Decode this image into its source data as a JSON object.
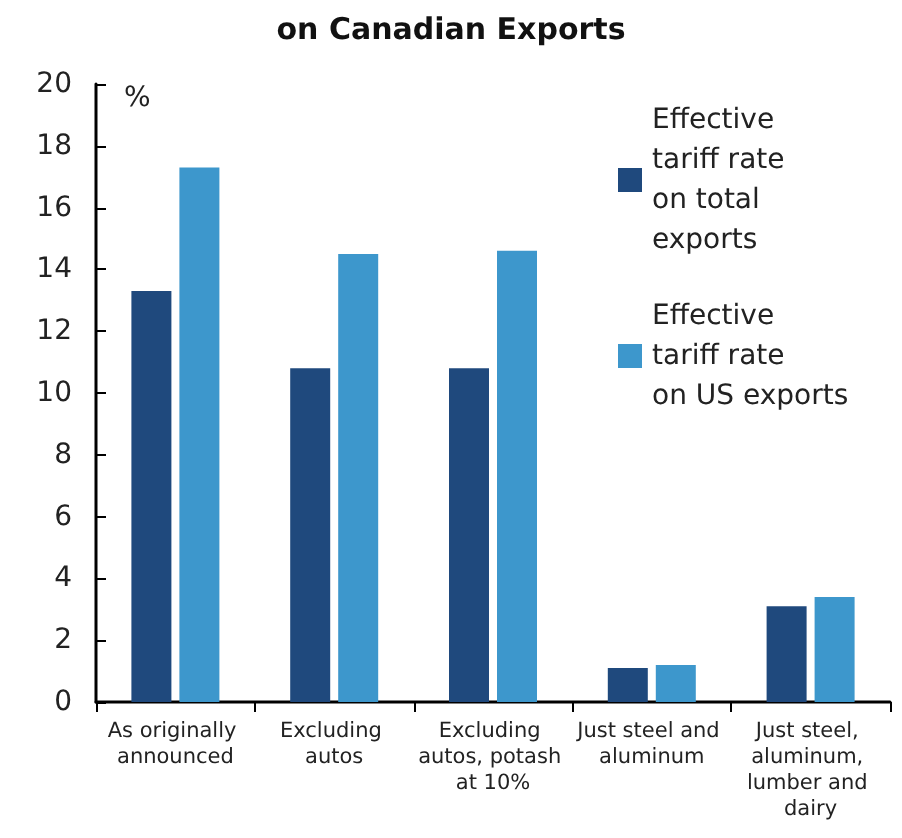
{
  "chart_data": {
    "type": "bar",
    "title": "on Canadian Exports",
    "ylabel": "%",
    "categories": [
      "As originally announced",
      "Excluding autos",
      "Excluding autos, potash at 10%",
      "Just steel and aluminum",
      "Just steel, aluminum, lumber and dairy"
    ],
    "series": [
      {
        "name": "Effective tariff rate on total exports",
        "color": "#1f497d",
        "values": [
          13.3,
          10.8,
          10.8,
          1.1,
          3.1
        ]
      },
      {
        "name": "Effective tariff rate on US exports",
        "color": "#3d97cc",
        "values": [
          17.3,
          14.5,
          14.6,
          1.2,
          3.4
        ]
      }
    ],
    "ylim": [
      0,
      20
    ],
    "yticks": [
      0,
      2,
      4,
      6,
      8,
      10,
      12,
      14,
      16,
      18,
      20
    ],
    "grid": false,
    "legend": "top right"
  }
}
